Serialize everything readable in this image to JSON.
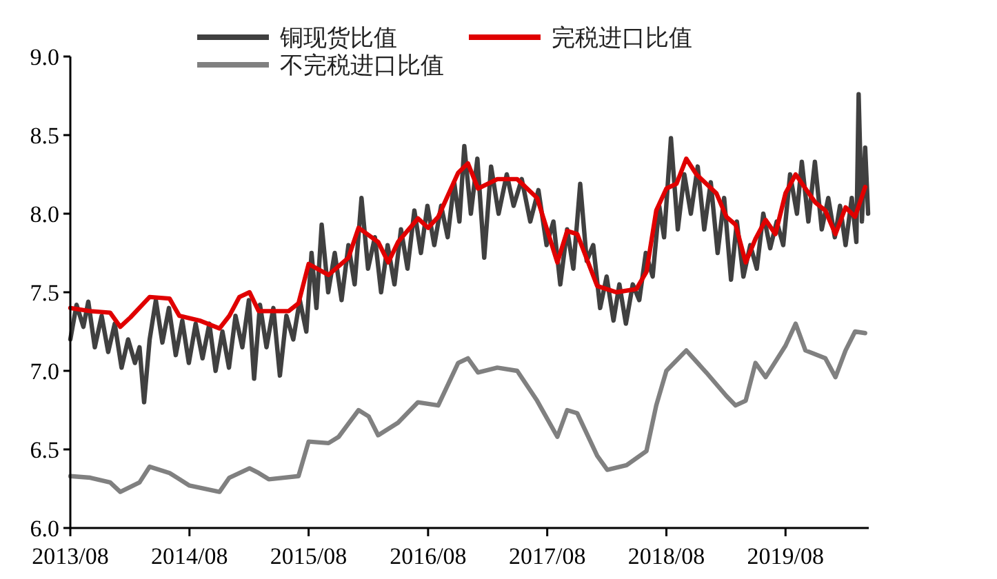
{
  "chart_data": {
    "type": "line",
    "xlim": [
      "2013-08-01",
      "2020-04-12"
    ],
    "ylim": [
      6,
      9
    ],
    "xticks": [
      {
        "value": "2013-08",
        "label": "2013/08"
      },
      {
        "value": "2014-08",
        "label": "2014/08"
      },
      {
        "value": "2015-08",
        "label": "2015/08"
      },
      {
        "value": "2016-08",
        "label": "2016/08"
      },
      {
        "value": "2017-08",
        "label": "2017/08"
      },
      {
        "value": "2018-08",
        "label": "2018/08"
      },
      {
        "value": "2019-08",
        "label": "2019/08"
      }
    ],
    "yticks": [
      {
        "value": 6,
        "label": "6.0"
      },
      {
        "value": 6.5,
        "label": "6.5"
      },
      {
        "value": 7,
        "label": "7.0"
      },
      {
        "value": 7.5,
        "label": "7.5"
      },
      {
        "value": 8,
        "label": "8.0"
      },
      {
        "value": 8.5,
        "label": "8.5"
      },
      {
        "value": 9,
        "label": "9.0"
      }
    ],
    "legend": "top",
    "grid": false,
    "marker": "none",
    "line_style": "solid",
    "series": [
      {
        "name": "铜现货比值",
        "color": "#404040",
        "x": [
          "2013-08-01",
          "2013-08-20",
          "2013-09-10",
          "2013-09-25",
          "2013-10-15",
          "2013-11-05",
          "2013-11-25",
          "2013-12-15",
          "2014-01-05",
          "2014-01-25",
          "2014-02-15",
          "2014-03-01",
          "2014-03-15",
          "2014-04-01",
          "2014-04-20",
          "2014-05-10",
          "2014-05-30",
          "2014-06-20",
          "2014-07-10",
          "2014-07-30",
          "2014-08-20",
          "2014-09-10",
          "2014-10-01",
          "2014-10-20",
          "2014-11-10",
          "2014-11-30",
          "2014-12-20",
          "2015-01-10",
          "2015-01-30",
          "2015-02-15",
          "2015-03-05",
          "2015-03-25",
          "2015-04-15",
          "2015-05-05",
          "2015-05-25",
          "2015-06-15",
          "2015-07-05",
          "2015-07-25",
          "2015-08-10",
          "2015-08-25",
          "2015-09-10",
          "2015-09-30",
          "2015-10-20",
          "2015-11-10",
          "2015-12-01",
          "2015-12-20",
          "2016-01-10",
          "2016-01-30",
          "2016-02-20",
          "2016-03-10",
          "2016-03-30",
          "2016-04-20",
          "2016-05-10",
          "2016-05-30",
          "2016-06-20",
          "2016-07-10",
          "2016-07-30",
          "2016-08-20",
          "2016-09-10",
          "2016-09-30",
          "2016-10-20",
          "2016-11-05",
          "2016-11-20",
          "2016-12-10",
          "2016-12-30",
          "2017-01-20",
          "2017-02-10",
          "2017-03-05",
          "2017-03-30",
          "2017-04-20",
          "2017-05-15",
          "2017-06-10",
          "2017-07-05",
          "2017-07-30",
          "2017-08-20",
          "2017-09-10",
          "2017-10-01",
          "2017-10-20",
          "2017-11-10",
          "2017-11-30",
          "2017-12-20",
          "2018-01-10",
          "2018-01-30",
          "2018-02-20",
          "2018-03-10",
          "2018-03-30",
          "2018-04-20",
          "2018-05-10",
          "2018-05-30",
          "2018-06-20",
          "2018-07-10",
          "2018-07-25",
          "2018-08-15",
          "2018-09-05",
          "2018-09-25",
          "2018-10-15",
          "2018-11-05",
          "2018-11-25",
          "2018-12-15",
          "2019-01-05",
          "2019-01-25",
          "2019-02-15",
          "2019-03-05",
          "2019-03-25",
          "2019-04-15",
          "2019-05-05",
          "2019-05-25",
          "2019-06-15",
          "2019-07-05",
          "2019-07-25",
          "2019-08-15",
          "2019-09-05",
          "2019-09-20",
          "2019-10-10",
          "2019-10-30",
          "2019-11-20",
          "2019-12-10",
          "2019-12-30",
          "2020-01-15",
          "2020-02-01",
          "2020-02-20",
          "2020-03-05",
          "2020-03-12",
          "2020-03-22",
          "2020-04-01",
          "2020-04-10"
        ],
        "values": [
          7.2,
          7.42,
          7.28,
          7.44,
          7.15,
          7.35,
          7.12,
          7.3,
          7.02,
          7.2,
          7.05,
          7.15,
          6.8,
          7.2,
          7.45,
          7.18,
          7.4,
          7.1,
          7.32,
          7.05,
          7.3,
          7.08,
          7.3,
          7.0,
          7.25,
          7.02,
          7.35,
          7.15,
          7.45,
          6.95,
          7.42,
          7.15,
          7.4,
          6.97,
          7.35,
          7.2,
          7.45,
          7.25,
          7.75,
          7.4,
          7.93,
          7.5,
          7.75,
          7.45,
          7.8,
          7.55,
          8.1,
          7.65,
          7.85,
          7.5,
          7.8,
          7.55,
          7.9,
          7.65,
          8.02,
          7.75,
          8.05,
          7.8,
          8.05,
          7.85,
          8.2,
          7.95,
          8.43,
          8.0,
          8.35,
          7.72,
          8.3,
          8.0,
          8.25,
          8.05,
          8.22,
          7.95,
          8.15,
          7.8,
          7.95,
          7.55,
          7.9,
          7.65,
          8.19,
          7.7,
          7.8,
          7.4,
          7.6,
          7.32,
          7.55,
          7.3,
          7.55,
          7.45,
          7.75,
          7.6,
          8.05,
          7.85,
          8.48,
          7.9,
          8.25,
          8.0,
          8.3,
          7.9,
          8.2,
          7.75,
          8.1,
          7.58,
          7.95,
          7.6,
          7.8,
          7.65,
          8.0,
          7.78,
          7.95,
          7.8,
          8.25,
          8.0,
          8.33,
          7.95,
          8.33,
          7.9,
          8.1,
          7.85,
          8.05,
          7.8,
          8.1,
          7.82,
          8.76,
          7.95,
          8.42,
          8.0
        ]
      },
      {
        "name": "完税进口比值",
        "color": "#e00000",
        "x": [
          "2013-08",
          "2013-10",
          "2013-12",
          "2014-01",
          "2014-02",
          "2014-04",
          "2014-06",
          "2014-07",
          "2014-09",
          "2014-11",
          "2014-12",
          "2015-01",
          "2015-02",
          "2015-03",
          "2015-06",
          "2015-07",
          "2015-08",
          "2015-10",
          "2015-12",
          "2016-01",
          "2016-03",
          "2016-04",
          "2016-05",
          "2016-07",
          "2016-08",
          "2016-09",
          "2016-11",
          "2016-12",
          "2017-01",
          "2017-03",
          "2017-05",
          "2017-07",
          "2017-09",
          "2017-10",
          "2017-11",
          "2018-01",
          "2018-03",
          "2018-05",
          "2018-06",
          "2018-07",
          "2018-08",
          "2018-09",
          "2018-10",
          "2018-11",
          "2019-01",
          "2019-02",
          "2019-03",
          "2019-04",
          "2019-05",
          "2019-06",
          "2019-07",
          "2019-08",
          "2019-09",
          "2019-10",
          "2019-11",
          "2019-12",
          "2020-01",
          "2020-02",
          "2020-03",
          "2020-04"
        ],
        "values": [
          7.4,
          7.38,
          7.37,
          7.28,
          7.34,
          7.47,
          7.46,
          7.35,
          7.32,
          7.27,
          7.35,
          7.47,
          7.5,
          7.38,
          7.38,
          7.43,
          7.68,
          7.61,
          7.72,
          7.91,
          7.82,
          7.69,
          7.82,
          7.97,
          7.91,
          7.98,
          8.26,
          8.32,
          8.16,
          8.22,
          8.22,
          8.1,
          7.69,
          7.89,
          7.87,
          7.54,
          7.5,
          7.52,
          7.63,
          8.02,
          8.16,
          8.19,
          8.35,
          8.25,
          8.13,
          7.98,
          7.93,
          7.69,
          7.84,
          7.96,
          7.87,
          8.13,
          8.25,
          8.16,
          8.07,
          8.02,
          7.87,
          8.04,
          7.98,
          8.17
        ]
      },
      {
        "name": "不完税进口比值",
        "color": "#808080",
        "x": [
          "2013-08",
          "2013-10",
          "2013-12",
          "2014-01",
          "2014-03",
          "2014-04",
          "2014-06",
          "2014-08",
          "2014-11",
          "2014-12",
          "2015-02",
          "2015-03",
          "2015-04",
          "2015-07",
          "2015-08",
          "2015-10",
          "2015-11",
          "2016-01",
          "2016-02",
          "2016-03",
          "2016-05",
          "2016-07",
          "2016-09",
          "2016-11",
          "2016-12",
          "2017-01",
          "2017-03",
          "2017-05",
          "2017-07",
          "2017-09",
          "2017-10",
          "2017-11",
          "2018-01",
          "2018-02",
          "2018-04",
          "2018-06",
          "2018-07",
          "2018-08",
          "2018-10",
          "2018-12",
          "2019-02",
          "2019-03",
          "2019-04",
          "2019-05",
          "2019-06",
          "2019-08",
          "2019-09",
          "2019-10",
          "2019-12",
          "2020-01",
          "2020-02",
          "2020-03",
          "2020-04"
        ],
        "values": [
          6.33,
          6.32,
          6.29,
          6.23,
          6.29,
          6.39,
          6.35,
          6.27,
          6.23,
          6.32,
          6.38,
          6.35,
          6.31,
          6.33,
          6.55,
          6.54,
          6.58,
          6.75,
          6.71,
          6.59,
          6.67,
          6.8,
          6.78,
          7.05,
          7.08,
          6.99,
          7.02,
          7.0,
          6.81,
          6.58,
          6.75,
          6.73,
          6.46,
          6.37,
          6.4,
          6.49,
          6.78,
          7.0,
          7.13,
          6.99,
          6.84,
          6.78,
          6.81,
          7.05,
          6.96,
          7.16,
          7.3,
          7.13,
          7.08,
          6.96,
          7.13,
          7.25,
          7.24
        ]
      }
    ]
  }
}
